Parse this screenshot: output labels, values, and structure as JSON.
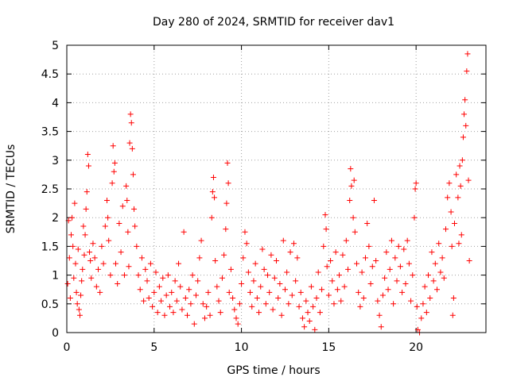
{
  "colors": {
    "series": "#ff0000",
    "grid": "#a0a0a0",
    "axis": "#000000",
    "background": "#ffffff"
  },
  "chart_data": {
    "type": "scatter",
    "title": "Day 280 of 2024, SRMTID for receiver dav1",
    "xlabel": "GPS time / hours",
    "ylabel": "SRMTID / TECUs",
    "xlim": [
      0,
      24
    ],
    "ylim": [
      0,
      5
    ],
    "xticks": [
      0,
      5,
      10,
      15,
      20
    ],
    "xtick_labels": [
      "0",
      "5",
      "10",
      "15",
      "20"
    ],
    "yticks": [
      0,
      0.5,
      1,
      1.5,
      2,
      2.5,
      3,
      3.5,
      4,
      4.5,
      5
    ],
    "ytick_labels": [
      "0",
      "0.5",
      "1",
      "1.5",
      "2",
      "2.5",
      "3",
      "3.5",
      "4",
      "4.5",
      "5"
    ],
    "grid": true,
    "marker": "plus",
    "series": [
      {
        "name": "dav1",
        "points": [
          [
            0.05,
            0.85
          ],
          [
            0.1,
            1.95
          ],
          [
            0.15,
            1.3
          ],
          [
            0.2,
            0.6
          ],
          [
            0.25,
            1.7
          ],
          [
            0.3,
            2.0
          ],
          [
            0.35,
            1.5
          ],
          [
            0.4,
            0.95
          ],
          [
            0.45,
            2.25
          ],
          [
            0.5,
            1.2
          ],
          [
            0.55,
            0.7
          ],
          [
            0.6,
            0.5
          ],
          [
            0.65,
            1.45
          ],
          [
            0.7,
            0.4
          ],
          [
            0.75,
            0.3
          ],
          [
            0.8,
            0.65
          ],
          [
            0.85,
            0.9
          ],
          [
            0.9,
            1.1
          ],
          [
            0.95,
            1.85
          ],
          [
            1.0,
            1.35
          ],
          [
            1.05,
            1.7
          ],
          [
            1.1,
            2.15
          ],
          [
            1.15,
            2.45
          ],
          [
            1.2,
            3.1
          ],
          [
            1.25,
            2.9
          ],
          [
            1.3,
            1.4
          ],
          [
            1.35,
            1.25
          ],
          [
            1.4,
            0.95
          ],
          [
            1.5,
            1.55
          ],
          [
            1.6,
            1.3
          ],
          [
            1.7,
            0.8
          ],
          [
            1.8,
            1.1
          ],
          [
            1.9,
            0.7
          ],
          [
            2.0,
            1.5
          ],
          [
            2.1,
            1.2
          ],
          [
            2.2,
            1.85
          ],
          [
            2.3,
            2.3
          ],
          [
            2.35,
            2.0
          ],
          [
            2.4,
            1.6
          ],
          [
            2.5,
            1.0
          ],
          [
            2.6,
            2.6
          ],
          [
            2.65,
            3.25
          ],
          [
            2.7,
            2.8
          ],
          [
            2.75,
            2.95
          ],
          [
            2.8,
            1.2
          ],
          [
            2.9,
            0.85
          ],
          [
            3.0,
            1.9
          ],
          [
            3.1,
            1.4
          ],
          [
            3.2,
            2.2
          ],
          [
            3.3,
            1.0
          ],
          [
            3.4,
            2.55
          ],
          [
            3.45,
            2.3
          ],
          [
            3.5,
            1.75
          ],
          [
            3.55,
            1.15
          ],
          [
            3.6,
            3.3
          ],
          [
            3.65,
            3.8
          ],
          [
            3.7,
            3.65
          ],
          [
            3.75,
            3.2
          ],
          [
            3.8,
            2.75
          ],
          [
            3.85,
            2.15
          ],
          [
            3.9,
            1.85
          ],
          [
            4.0,
            1.5
          ],
          [
            4.1,
            1.0
          ],
          [
            4.2,
            0.75
          ],
          [
            4.3,
            1.3
          ],
          [
            4.4,
            0.55
          ],
          [
            4.5,
            1.1
          ],
          [
            4.6,
            0.9
          ],
          [
            4.7,
            0.6
          ],
          [
            4.8,
            1.2
          ],
          [
            4.9,
            0.45
          ],
          [
            5.0,
            0.7
          ],
          [
            5.1,
            1.05
          ],
          [
            5.2,
            0.35
          ],
          [
            5.3,
            0.8
          ],
          [
            5.4,
            0.55
          ],
          [
            5.5,
            0.95
          ],
          [
            5.6,
            0.3
          ],
          [
            5.7,
            0.65
          ],
          [
            5.8,
            1.0
          ],
          [
            5.9,
            0.45
          ],
          [
            6.0,
            0.7
          ],
          [
            6.1,
            0.35
          ],
          [
            6.2,
            0.9
          ],
          [
            6.3,
            0.55
          ],
          [
            6.4,
            1.2
          ],
          [
            6.5,
            0.8
          ],
          [
            6.6,
            0.4
          ],
          [
            6.7,
            1.75
          ],
          [
            6.8,
            0.6
          ],
          [
            6.9,
            0.3
          ],
          [
            7.0,
            0.75
          ],
          [
            7.1,
            0.5
          ],
          [
            7.2,
            1.0
          ],
          [
            7.3,
            0.15
          ],
          [
            7.4,
            0.65
          ],
          [
            7.5,
            0.9
          ],
          [
            7.6,
            1.3
          ],
          [
            7.7,
            1.6
          ],
          [
            7.8,
            0.5
          ],
          [
            7.9,
            0.25
          ],
          [
            8.0,
            0.45
          ],
          [
            8.1,
            0.7
          ],
          [
            8.2,
            0.3
          ],
          [
            8.3,
            2.0
          ],
          [
            8.35,
            2.45
          ],
          [
            8.4,
            2.7
          ],
          [
            8.45,
            2.35
          ],
          [
            8.5,
            1.25
          ],
          [
            8.6,
            0.8
          ],
          [
            8.7,
            0.55
          ],
          [
            8.8,
            0.35
          ],
          [
            8.9,
            0.95
          ],
          [
            9.0,
            1.35
          ],
          [
            9.1,
            1.8
          ],
          [
            9.15,
            2.25
          ],
          [
            9.2,
            2.95
          ],
          [
            9.25,
            2.6
          ],
          [
            9.3,
            0.7
          ],
          [
            9.4,
            1.1
          ],
          [
            9.5,
            0.6
          ],
          [
            9.6,
            0.4
          ],
          [
            9.7,
            0.25
          ],
          [
            9.8,
            0.15
          ],
          [
            9.9,
            0.5
          ],
          [
            10.0,
            0.85
          ],
          [
            10.1,
            1.3
          ],
          [
            10.2,
            1.75
          ],
          [
            10.3,
            1.55
          ],
          [
            10.4,
            1.05
          ],
          [
            10.5,
            0.7
          ],
          [
            10.6,
            0.45
          ],
          [
            10.7,
            0.9
          ],
          [
            10.8,
            1.2
          ],
          [
            10.9,
            0.6
          ],
          [
            11.0,
            0.35
          ],
          [
            11.1,
            0.8
          ],
          [
            11.2,
            1.45
          ],
          [
            11.3,
            1.1
          ],
          [
            11.4,
            0.5
          ],
          [
            11.5,
            1.0
          ],
          [
            11.6,
            0.7
          ],
          [
            11.7,
            1.35
          ],
          [
            11.8,
            0.4
          ],
          [
            11.9,
            0.95
          ],
          [
            12.0,
            1.25
          ],
          [
            12.1,
            0.6
          ],
          [
            12.2,
            0.85
          ],
          [
            12.3,
            0.3
          ],
          [
            12.4,
            1.6
          ],
          [
            12.5,
            0.75
          ],
          [
            12.6,
            1.05
          ],
          [
            12.7,
            0.5
          ],
          [
            12.8,
            1.4
          ],
          [
            12.9,
            0.65
          ],
          [
            13.0,
            1.55
          ],
          [
            13.1,
            0.9
          ],
          [
            13.2,
            1.3
          ],
          [
            13.3,
            0.45
          ],
          [
            13.4,
            0.7
          ],
          [
            13.5,
            0.25
          ],
          [
            13.6,
            0.1
          ],
          [
            13.7,
            0.55
          ],
          [
            13.8,
            0.35
          ],
          [
            13.9,
            0.2
          ],
          [
            14.0,
            0.8
          ],
          [
            14.1,
            0.45
          ],
          [
            14.2,
            0.05
          ],
          [
            14.3,
            0.6
          ],
          [
            14.4,
            1.05
          ],
          [
            14.5,
            0.35
          ],
          [
            14.6,
            0.75
          ],
          [
            14.7,
            1.5
          ],
          [
            14.8,
            2.05
          ],
          [
            14.85,
            1.8
          ],
          [
            14.9,
            1.15
          ],
          [
            15.0,
            0.65
          ],
          [
            15.1,
            1.25
          ],
          [
            15.2,
            0.9
          ],
          [
            15.3,
            0.5
          ],
          [
            15.4,
            1.4
          ],
          [
            15.5,
            0.75
          ],
          [
            15.6,
            1.0
          ],
          [
            15.7,
            0.55
          ],
          [
            15.8,
            1.35
          ],
          [
            15.9,
            0.8
          ],
          [
            16.0,
            1.6
          ],
          [
            16.1,
            1.1
          ],
          [
            16.2,
            2.3
          ],
          [
            16.25,
            2.85
          ],
          [
            16.3,
            2.55
          ],
          [
            16.4,
            2.0
          ],
          [
            16.45,
            2.65
          ],
          [
            16.5,
            1.75
          ],
          [
            16.6,
            1.2
          ],
          [
            16.7,
            0.7
          ],
          [
            16.8,
            0.45
          ],
          [
            16.9,
            1.05
          ],
          [
            17.0,
            0.6
          ],
          [
            17.1,
            1.3
          ],
          [
            17.2,
            1.9
          ],
          [
            17.3,
            1.5
          ],
          [
            17.4,
            0.85
          ],
          [
            17.5,
            1.15
          ],
          [
            17.6,
            2.3
          ],
          [
            17.7,
            1.25
          ],
          [
            17.8,
            0.55
          ],
          [
            17.9,
            0.3
          ],
          [
            18.0,
            0.1
          ],
          [
            18.1,
            0.65
          ],
          [
            18.2,
            0.95
          ],
          [
            18.3,
            1.4
          ],
          [
            18.4,
            0.75
          ],
          [
            18.5,
            1.1
          ],
          [
            18.6,
            1.6
          ],
          [
            18.7,
            0.5
          ],
          [
            18.8,
            1.3
          ],
          [
            18.9,
            0.9
          ],
          [
            19.0,
            1.5
          ],
          [
            19.1,
            1.15
          ],
          [
            19.2,
            0.7
          ],
          [
            19.3,
            1.45
          ],
          [
            19.4,
            0.85
          ],
          [
            19.5,
            1.6
          ],
          [
            19.6,
            1.2
          ],
          [
            19.7,
            0.55
          ],
          [
            19.8,
            1.0
          ],
          [
            19.9,
            2.0
          ],
          [
            19.95,
            2.5
          ],
          [
            20.0,
            2.6
          ],
          [
            20.05,
            0.45
          ],
          [
            20.1,
            0.05
          ],
          [
            20.2,
            0.0
          ],
          [
            20.3,
            0.25
          ],
          [
            20.4,
            0.5
          ],
          [
            20.5,
            0.8
          ],
          [
            20.6,
            0.35
          ],
          [
            20.7,
            1.0
          ],
          [
            20.8,
            0.6
          ],
          [
            20.9,
            1.4
          ],
          [
            21.0,
            0.9
          ],
          [
            21.1,
            1.2
          ],
          [
            21.2,
            0.75
          ],
          [
            21.3,
            1.55
          ],
          [
            21.4,
            1.05
          ],
          [
            21.5,
            1.3
          ],
          [
            21.6,
            0.95
          ],
          [
            21.7,
            1.8
          ],
          [
            21.8,
            2.35
          ],
          [
            21.9,
            2.6
          ],
          [
            22.0,
            2.1
          ],
          [
            22.05,
            1.5
          ],
          [
            22.1,
            0.3
          ],
          [
            22.15,
            0.6
          ],
          [
            22.2,
            1.9
          ],
          [
            22.3,
            2.75
          ],
          [
            22.4,
            2.35
          ],
          [
            22.45,
            1.55
          ],
          [
            22.5,
            2.9
          ],
          [
            22.55,
            2.55
          ],
          [
            22.6,
            1.7
          ],
          [
            22.65,
            3.0
          ],
          [
            22.7,
            3.4
          ],
          [
            22.75,
            3.8
          ],
          [
            22.8,
            4.05
          ],
          [
            22.85,
            3.6
          ],
          [
            22.9,
            4.55
          ],
          [
            22.95,
            4.85
          ],
          [
            23.0,
            2.65
          ],
          [
            23.05,
            1.25
          ]
        ]
      }
    ]
  }
}
